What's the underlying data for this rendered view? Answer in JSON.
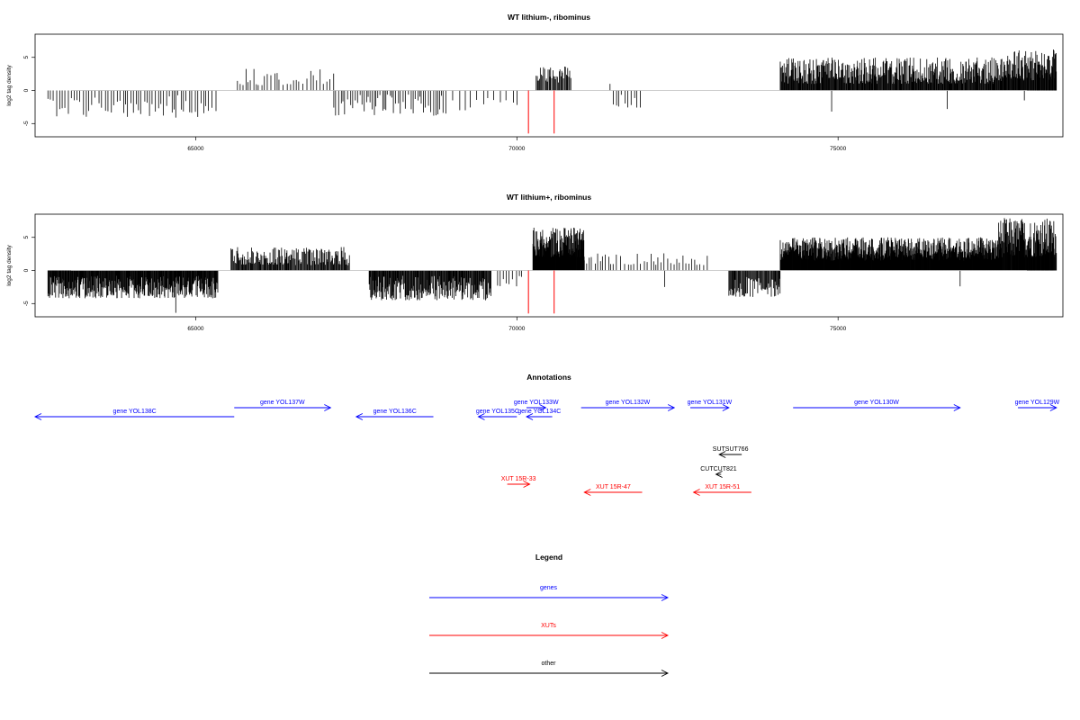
{
  "chart_data": [
    {
      "type": "bar",
      "title": "WT lithium-, ribominus",
      "ylabel": "log2 tag density",
      "xlim": [
        62500,
        78500
      ],
      "ylim": [
        -7,
        8.5
      ],
      "xticks": [
        65000,
        70000,
        75000
      ],
      "yticks": [
        -5,
        0,
        5
      ],
      "baseline_color": "#bbbbbb",
      "bar_color": "#000000",
      "marker_color": "#ff0000",
      "markers": [
        70180,
        70580
      ],
      "marker_range": [
        -6.5,
        0
      ],
      "regions": [
        {
          "from": 62700,
          "to": 65350,
          "density": 0.3,
          "min": -4.0,
          "max": -0.7
        },
        {
          "from": 65650,
          "to": 67150,
          "density": 0.3,
          "min": 0.8,
          "max": 3.4
        },
        {
          "from": 67150,
          "to": 68900,
          "density": 0.4,
          "min": -3.8,
          "max": -0.6
        },
        {
          "from": 69000,
          "to": 70050,
          "density": 0.15,
          "min": -3.0,
          "max": -0.8
        },
        {
          "from": 70300,
          "to": 70850,
          "density": 1.0,
          "min": 1.2,
          "max": 3.8
        },
        {
          "from": 71500,
          "to": 71950,
          "density": 0.3,
          "min": -2.6,
          "max": -0.6
        },
        {
          "from": 74100,
          "to": 77550,
          "density": 1.6,
          "min": 1.0,
          "max": 5.0
        },
        {
          "from": 77550,
          "to": 78400,
          "density": 1.8,
          "min": 1.5,
          "max": 6.2
        }
      ],
      "extra_bars": [
        [
          71450,
          1.0
        ],
        [
          74900,
          -3.2
        ],
        [
          76700,
          -2.8
        ],
        [
          77900,
          -1.5
        ],
        [
          64690,
          -4.1
        ]
      ]
    },
    {
      "type": "bar",
      "title": "WT lithium+, ribominus",
      "ylabel": "log2 tag density",
      "xlim": [
        62500,
        78500
      ],
      "ylim": [
        -7,
        8.5
      ],
      "xticks": [
        65000,
        70000,
        75000
      ],
      "yticks": [
        -5,
        0,
        5
      ],
      "baseline_color": "#bbbbbb",
      "bar_color": "#000000",
      "marker_color": "#ff0000",
      "markers": [
        70180,
        70580
      ],
      "marker_range": [
        -6.5,
        0
      ],
      "regions": [
        {
          "from": 62700,
          "to": 65350,
          "density": 1.8,
          "min": -4.2,
          "max": -0.8
        },
        {
          "from": 65550,
          "to": 67400,
          "density": 1.2,
          "min": 0.8,
          "max": 3.6
        },
        {
          "from": 67700,
          "to": 69600,
          "density": 1.5,
          "min": -4.5,
          "max": -0.8
        },
        {
          "from": 69700,
          "to": 70100,
          "density": 0.3,
          "min": -2.5,
          "max": -0.8
        },
        {
          "from": 70250,
          "to": 71050,
          "density": 3.0,
          "min": 2.0,
          "max": 6.5
        },
        {
          "from": 71050,
          "to": 73000,
          "density": 0.3,
          "min": 0.8,
          "max": 2.6
        },
        {
          "from": 73300,
          "to": 74100,
          "density": 1.2,
          "min": -4.0,
          "max": -1.0
        },
        {
          "from": 74100,
          "to": 77500,
          "density": 3.0,
          "min": 1.5,
          "max": 5.0
        },
        {
          "from": 77500,
          "to": 78400,
          "density": 2.4,
          "min": 2.0,
          "max": 8.0
        }
      ],
      "extra_bars": [
        [
          64690,
          -6.4
        ],
        [
          72300,
          -2.5
        ],
        [
          76900,
          -2.4
        ]
      ]
    },
    {
      "type": "annotation",
      "title": "Annotations",
      "xlim": [
        62500,
        78500
      ],
      "features": [
        {
          "label": "gene YOL138C",
          "from": 62500,
          "to": 65600,
          "strand": "-",
          "row": 0,
          "group": "gene"
        },
        {
          "label": "gene YOL137W",
          "from": 65600,
          "to": 67100,
          "strand": "+",
          "row": 1,
          "group": "gene"
        },
        {
          "label": "gene YOL136C",
          "from": 67500,
          "to": 68700,
          "strand": "-",
          "row": 0,
          "group": "gene"
        },
        {
          "label": "gene YOL135C",
          "from": 69400,
          "to": 70000,
          "strand": "-",
          "row": 0,
          "group": "gene"
        },
        {
          "label": "gene YOL133W",
          "from": 70150,
          "to": 70450,
          "strand": "+",
          "row": 1,
          "group": "gene"
        },
        {
          "label": "gene YOL134C",
          "from": 70150,
          "to": 70550,
          "strand": "-",
          "row": 0,
          "group": "gene"
        },
        {
          "label": "gene YOL132W",
          "from": 71000,
          "to": 72450,
          "strand": "+",
          "row": 1,
          "group": "gene"
        },
        {
          "label": "gene YOL131W",
          "from": 72700,
          "to": 73300,
          "strand": "+",
          "row": 1,
          "group": "gene"
        },
        {
          "label": "gene YOL130W",
          "from": 74300,
          "to": 76900,
          "strand": "+",
          "row": 1,
          "group": "gene"
        },
        {
          "label": "gene YOL129W",
          "from": 77800,
          "to": 78400,
          "strand": "+",
          "row": 1,
          "group": "gene"
        },
        {
          "label": "SUTSUT766",
          "from": 73150,
          "to": 73500,
          "strand": "-",
          "row": 2,
          "group": "other"
        },
        {
          "label": "CUTCUT821",
          "from": 73100,
          "to": 73180,
          "strand": "-",
          "row": 3,
          "group": "other"
        },
        {
          "label": "XUT 15R-33",
          "from": 69850,
          "to": 70200,
          "strand": "+",
          "row": 4,
          "group": "xut"
        },
        {
          "label": "XUT 15R-47",
          "from": 71050,
          "to": 71950,
          "strand": "-",
          "row": 5,
          "group": "xut"
        },
        {
          "label": "XUT 15R-51",
          "from": 72750,
          "to": 73650,
          "strand": "-",
          "row": 5,
          "group": "xut"
        }
      ]
    },
    {
      "type": "legend",
      "title": "Legend",
      "entries": [
        {
          "label": "genes",
          "color": "#0000ff"
        },
        {
          "label": "XUTs",
          "color": "#ff0000"
        },
        {
          "label": "other",
          "color": "#000000"
        }
      ]
    }
  ],
  "colors": {
    "gene": "#0000ff",
    "xut": "#ff0000",
    "other": "#000000"
  }
}
